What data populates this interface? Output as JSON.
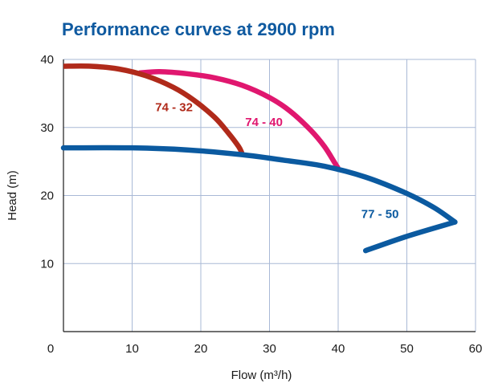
{
  "chart_data": {
    "type": "line",
    "title": "Performance curves at 2900 rpm",
    "xlabel": "Flow (m³/h)",
    "ylabel": "Head (m)",
    "xlim": [
      0,
      60
    ],
    "ylim": [
      0,
      40
    ],
    "xticks": [
      0,
      10,
      20,
      30,
      40,
      50,
      60
    ],
    "yticks": [
      10,
      20,
      30,
      40
    ],
    "grid": true,
    "series": [
      {
        "name": "74 - 32",
        "color": "#b02a1a",
        "points": [
          [
            0,
            39
          ],
          [
            4,
            39
          ],
          [
            8,
            38.6
          ],
          [
            12,
            37.6
          ],
          [
            16,
            35.9
          ],
          [
            19,
            34
          ],
          [
            22,
            31.5
          ],
          [
            24,
            29.2
          ],
          [
            25.5,
            27.2
          ],
          [
            26,
            26.2
          ]
        ]
      },
      {
        "name": "74 - 40",
        "color": "#e0176f",
        "points": [
          [
            11,
            38
          ],
          [
            14,
            38.2
          ],
          [
            18,
            37.9
          ],
          [
            22,
            37.3
          ],
          [
            26,
            36.2
          ],
          [
            30,
            34.4
          ],
          [
            33,
            32.4
          ],
          [
            36,
            29.6
          ],
          [
            38,
            27.2
          ],
          [
            39.5,
            24.8
          ],
          [
            40,
            24
          ]
        ]
      },
      {
        "name": "77 - 50",
        "color": "#0b5aa0",
        "points": [
          [
            0,
            27
          ],
          [
            10,
            27
          ],
          [
            18,
            26.7
          ],
          [
            26,
            26
          ],
          [
            32,
            25.2
          ],
          [
            38,
            24.3
          ],
          [
            44,
            22.7
          ],
          [
            50,
            20.3
          ],
          [
            54,
            18.2
          ],
          [
            57,
            16.1
          ],
          [
            50,
            14
          ],
          [
            44,
            11.9
          ]
        ]
      }
    ]
  }
}
